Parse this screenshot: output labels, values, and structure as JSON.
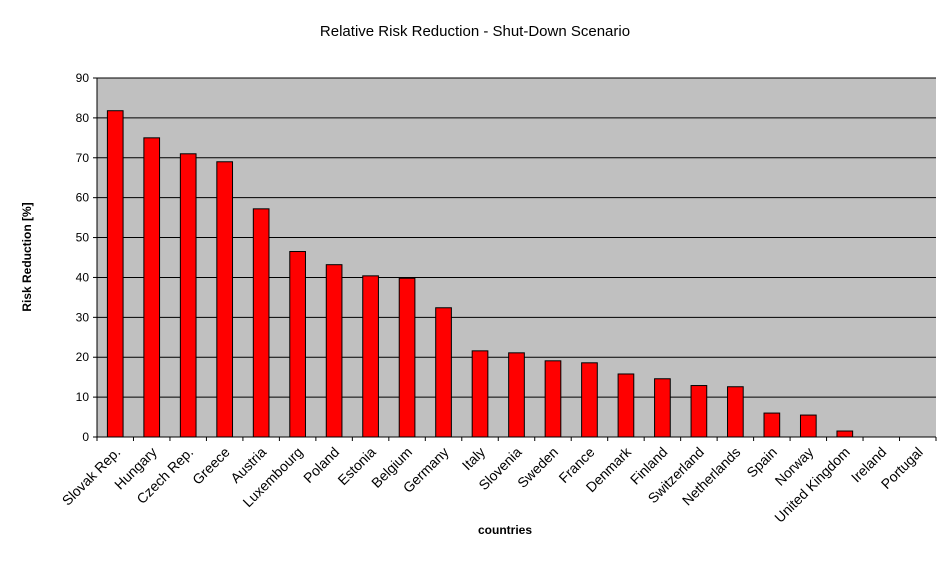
{
  "chart_data": {
    "type": "bar",
    "title": "Relative Risk Reduction - Shut-Down Scenario",
    "xlabel": "countries",
    "ylabel": "Risk Reduction [%]",
    "ylim": [
      0,
      90
    ],
    "yticks": [
      "0",
      "10",
      "20",
      "30",
      "40",
      "50",
      "60",
      "70",
      "80",
      "90"
    ],
    "grid": true,
    "legend": "none",
    "categories": [
      "Slovak Rep.",
      "Hungary",
      "Czech Rep.",
      "Greece",
      "Austria",
      "Luxembourg",
      "Poland",
      "Estonia",
      "Belgium",
      "Germany",
      "Italy",
      "Slovenia",
      "Sweden",
      "France",
      "Denmark",
      "Finland",
      "Switzerland",
      "Netherlands",
      "Spain",
      "Norway",
      "United Kingdom",
      "Ireland",
      "Portugal"
    ],
    "values": [
      81.8,
      75.0,
      71.0,
      69.0,
      57.2,
      46.5,
      43.2,
      40.4,
      39.8,
      32.4,
      21.6,
      21.1,
      19.1,
      18.6,
      15.8,
      14.6,
      12.9,
      12.6,
      6.0,
      5.5,
      1.5,
      0,
      0
    ],
    "colors": {
      "bar": "#ff0000",
      "bar_outline": "#000000",
      "plot_background": "#c0c0c0",
      "gridline": "#000000"
    }
  }
}
